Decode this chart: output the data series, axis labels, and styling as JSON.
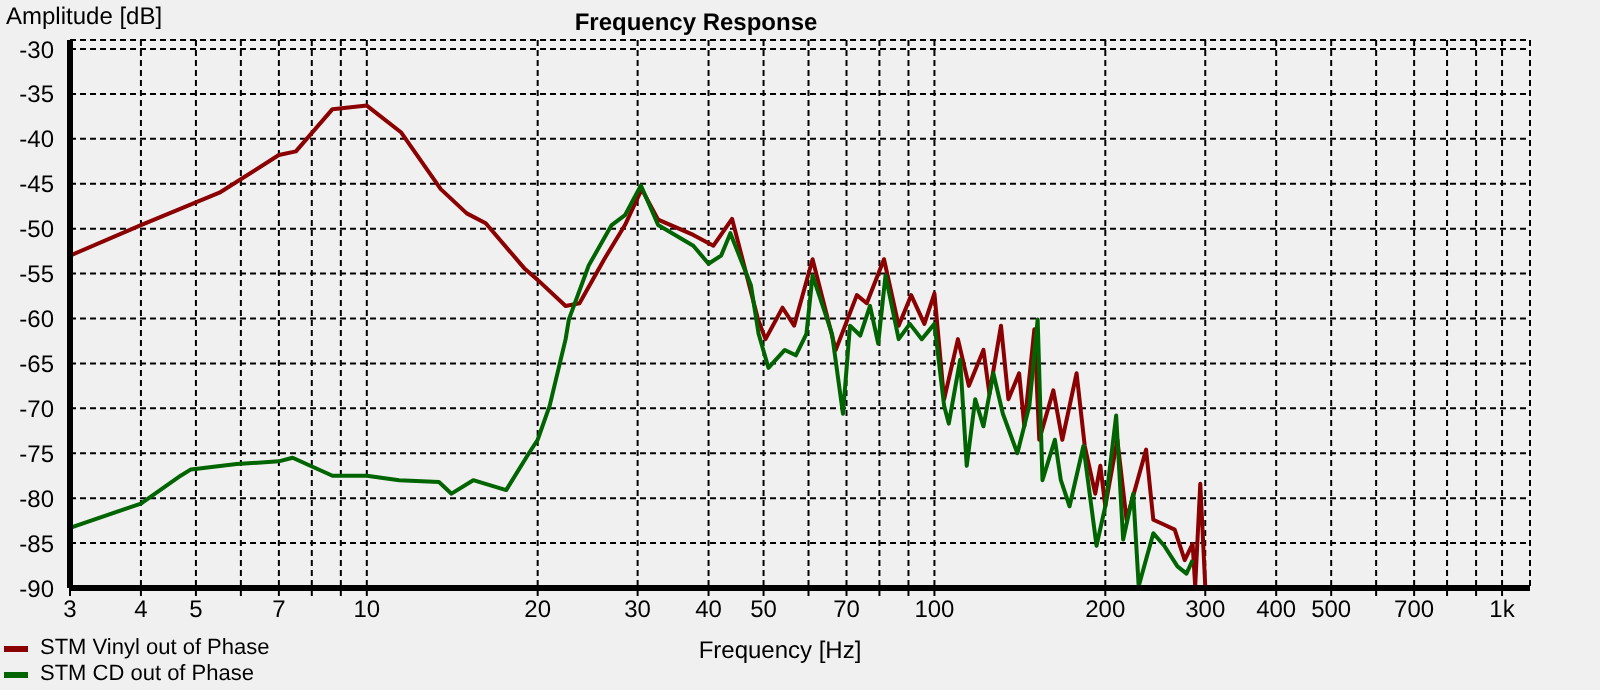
{
  "chart_data": {
    "type": "line",
    "title": "Frequency Response",
    "xlabel": "Frequency [Hz]",
    "ylabel": "Amplitude [dB]",
    "log": "x",
    "grid": true,
    "legend": "bottom left",
    "line_style": "solid",
    "marker": "none",
    "xlim": [
      3,
      1120
    ],
    "ylim": [
      -90,
      -29
    ],
    "xticks": [
      3,
      4,
      5,
      {
        "value": 6,
        "label": null
      },
      7,
      {
        "value": 8,
        "label": null
      },
      {
        "value": 9,
        "label": null
      },
      10,
      20,
      30,
      40,
      50,
      {
        "value": 60,
        "label": null
      },
      70,
      {
        "value": 80,
        "label": null
      },
      {
        "value": 90,
        "label": null
      },
      100,
      200,
      300,
      400,
      500,
      {
        "value": 600,
        "label": null
      },
      700,
      {
        "value": 800,
        "label": null
      },
      {
        "value": 900,
        "label": null
      },
      {
        "value": 1000,
        "label": "1k"
      }
    ],
    "yticks": [
      -90,
      -85,
      -80,
      -75,
      -70,
      -65,
      -60,
      -55,
      -50,
      -45,
      -40,
      -35,
      -30
    ],
    "series": [
      {
        "name": "STM Vinyl out of Phase",
        "color": "#8b0000",
        "x": [
          3,
          4,
          5.5,
          7,
          7.5,
          8.7,
          10,
          11.5,
          13.5,
          15,
          16.2,
          19,
          20,
          22.4,
          23.7,
          26.2,
          28.5,
          30.5,
          32.6,
          37.6,
          40.8,
          44,
          48.9,
          50.4,
          54,
          56.6,
          61,
          67,
          73,
          76,
          81.5,
          86.5,
          91,
          96,
          100,
          104,
          110,
          115,
          122,
          125,
          131,
          135,
          141,
          144,
          150,
          153,
          162,
          168,
          178,
          184,
          192,
          196,
          200,
          210,
          218,
          236,
          243,
          253,
          265,
          276,
          285,
          288,
          294,
          300
        ],
        "values": [
          -53,
          -49.6,
          -46,
          -41.8,
          -41.4,
          -36.7,
          -36.3,
          -39.3,
          -45.6,
          -48.3,
          -49.4,
          -54.5,
          -55.7,
          -58.6,
          -58.3,
          -53.4,
          -49.6,
          -45.6,
          -49,
          -50.7,
          -51.9,
          -48.9,
          -60.1,
          -62.3,
          -58.8,
          -60.8,
          -53.4,
          -63.5,
          -57.4,
          -58.3,
          -53.4,
          -60.8,
          -57.4,
          -60.6,
          -57.2,
          -69,
          -62.3,
          -67.5,
          -63.5,
          -68.4,
          -60.8,
          -69,
          -66.1,
          -72,
          -61.2,
          -73.5,
          -68,
          -73.5,
          -66.1,
          -74.2,
          -79.5,
          -76.4,
          -80.9,
          -73.5,
          -82.4,
          -74.6,
          -82.4,
          -82.9,
          -83.5,
          -86.9,
          -85.1,
          -89.8,
          -78.4,
          -89.8
        ]
      },
      {
        "name": "STM CD out of Phase",
        "color": "#006400",
        "x": [
          3,
          4,
          4.7,
          4.9,
          5.9,
          7,
          7.4,
          8.7,
          10,
          11.4,
          13.4,
          14.1,
          15.4,
          17.6,
          19.3,
          20,
          21,
          22.4,
          22.7,
          24.6,
          27,
          28.5,
          30.4,
          32.6,
          37.6,
          40,
          42.1,
          43.7,
          47.5,
          49,
          51,
          54.5,
          57,
          59.5,
          61,
          66,
          69,
          71,
          74,
          77,
          79.6,
          82,
          86.5,
          90.5,
          95,
          100,
          104,
          106,
          111,
          114,
          118,
          122,
          127,
          132,
          140,
          147,
          152,
          155,
          163,
          167,
          173,
          183,
          193,
          200,
          209,
          215,
          224,
          229,
          243,
          254,
          268,
          278,
          285
        ],
        "values": [
          -83.3,
          -80.6,
          -77.5,
          -76.8,
          -76.2,
          -75.9,
          -75.5,
          -77.5,
          -77.5,
          -78,
          -78.2,
          -79.5,
          -78,
          -79.1,
          -75,
          -73.5,
          -69.7,
          -62.3,
          -60.1,
          -54.1,
          -49.6,
          -48.5,
          -45.2,
          -49.6,
          -51.9,
          -53.9,
          -53,
          -50.5,
          -56.3,
          -61.7,
          -65.5,
          -63.5,
          -64.1,
          -61.7,
          -55.2,
          -61.7,
          -70.6,
          -60.8,
          -61.9,
          -58.6,
          -62.8,
          -55.2,
          -62.3,
          -60.6,
          -62.3,
          -60.6,
          -69.7,
          -71.7,
          -64.6,
          -76.4,
          -69,
          -72,
          -66.1,
          -70.6,
          -75,
          -69.7,
          -60.1,
          -78,
          -73.5,
          -78,
          -80.9,
          -74.2,
          -85.3,
          -80.9,
          -70.8,
          -84.6,
          -79.5,
          -89.8,
          -83.9,
          -85.3,
          -87.6,
          -88.4,
          -86.9
        ]
      }
    ]
  }
}
